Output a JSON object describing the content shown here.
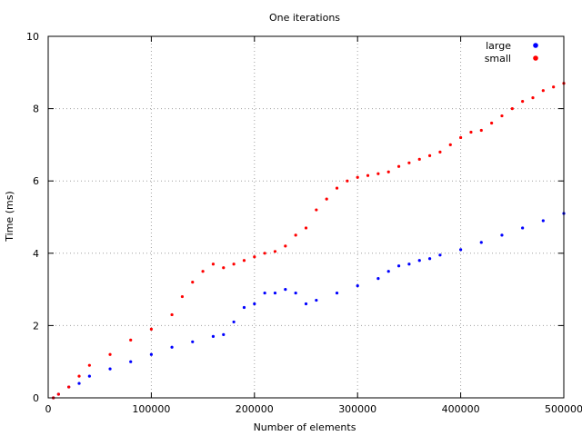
{
  "chart_data": {
    "type": "scatter",
    "title": "One iterations",
    "xlabel": "Number of elements",
    "ylabel": "Time (ms)",
    "xlim": [
      0,
      500000
    ],
    "ylim": [
      0,
      10
    ],
    "x_ticks": [
      0,
      100000,
      200000,
      300000,
      400000,
      500000
    ],
    "x_tick_labels": [
      "0",
      "100000",
      "200000",
      "300000",
      "400000",
      "500000"
    ],
    "y_ticks": [
      0,
      2,
      4,
      6,
      8,
      10
    ],
    "y_tick_labels": [
      "0",
      "2",
      "4",
      "6",
      "8",
      "10"
    ],
    "grid": true,
    "legend_position": "top-right",
    "series": [
      {
        "name": "large",
        "color": "#0000ff",
        "x": [
          5000,
          10000,
          20000,
          30000,
          40000,
          60000,
          80000,
          100000,
          120000,
          140000,
          160000,
          170000,
          180000,
          190000,
          200000,
          210000,
          220000,
          230000,
          240000,
          250000,
          260000,
          280000,
          300000,
          320000,
          330000,
          340000,
          350000,
          360000,
          370000,
          380000,
          400000,
          420000,
          440000,
          460000,
          480000,
          500000
        ],
        "y": [
          0.0,
          0.1,
          0.3,
          0.4,
          0.6,
          0.8,
          1.0,
          1.2,
          1.4,
          1.55,
          1.7,
          1.75,
          2.1,
          2.5,
          2.6,
          2.9,
          2.9,
          3.0,
          2.9,
          2.6,
          2.7,
          2.9,
          3.1,
          3.3,
          3.5,
          3.65,
          3.7,
          3.8,
          3.85,
          3.95,
          4.1,
          4.3,
          4.5,
          4.7,
          4.9,
          5.1
        ]
      },
      {
        "name": "small",
        "color": "#ff0000",
        "x": [
          5000,
          10000,
          20000,
          30000,
          40000,
          60000,
          80000,
          100000,
          120000,
          130000,
          140000,
          150000,
          160000,
          170000,
          180000,
          190000,
          200000,
          210000,
          220000,
          230000,
          240000,
          250000,
          260000,
          270000,
          280000,
          290000,
          300000,
          310000,
          320000,
          330000,
          340000,
          350000,
          360000,
          370000,
          380000,
          390000,
          400000,
          410000,
          420000,
          430000,
          440000,
          450000,
          460000,
          470000,
          480000,
          490000,
          500000
        ],
        "y": [
          0.0,
          0.1,
          0.3,
          0.6,
          0.9,
          1.2,
          1.6,
          1.9,
          2.3,
          2.8,
          3.2,
          3.5,
          3.7,
          3.6,
          3.7,
          3.8,
          3.9,
          4.0,
          4.05,
          4.2,
          4.5,
          4.7,
          5.2,
          5.5,
          5.8,
          6.0,
          6.1,
          6.15,
          6.2,
          6.25,
          6.4,
          6.5,
          6.6,
          6.7,
          6.8,
          7.0,
          7.2,
          7.35,
          7.4,
          7.6,
          7.8,
          8.0,
          8.2,
          8.3,
          8.5,
          8.6,
          8.7
        ]
      }
    ]
  }
}
